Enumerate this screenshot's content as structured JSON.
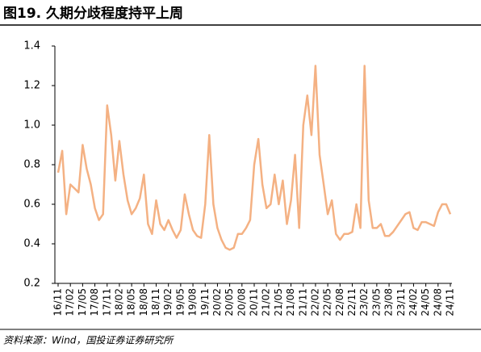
{
  "chart_data": {
    "type": "line",
    "title": "图19. 久期分歧程度持平上周",
    "source": "资料来源：Wind，国投证券证券研究所",
    "categories": [
      "16/11",
      null,
      null,
      "17/02",
      null,
      null,
      "17/05",
      null,
      null,
      "17/08",
      null,
      null,
      "17/11",
      null,
      null,
      "18/02",
      null,
      null,
      "18/05",
      null,
      null,
      "18/08",
      null,
      null,
      "18/11",
      null,
      null,
      "19/02",
      null,
      null,
      "19/05",
      null,
      null,
      "19/08",
      null,
      null,
      "19/11",
      null,
      null,
      "20/02",
      null,
      null,
      "20/05",
      null,
      null,
      "20/08",
      null,
      null,
      "20/11",
      null,
      null,
      "21/02",
      null,
      null,
      "21/05",
      null,
      null,
      "21/08",
      null,
      null,
      "21/11",
      null,
      null,
      "22/02",
      null,
      null,
      "22/05",
      null,
      null,
      "22/08",
      null,
      null,
      "22/11",
      null,
      null,
      "23/02",
      null,
      null,
      "23/05",
      null,
      null,
      "23/08",
      null,
      null,
      "23/11",
      null,
      null,
      "24/02",
      null,
      null,
      "24/05",
      null,
      null,
      "24/08",
      null,
      null,
      "24/11"
    ],
    "series": [
      {
        "name": "久期分歧程度",
        "color": "#f4b183",
        "values": [
          0.76,
          0.87,
          0.55,
          0.7,
          0.68,
          0.66,
          0.9,
          0.78,
          0.7,
          0.58,
          0.52,
          0.55,
          1.1,
          0.95,
          0.72,
          0.92,
          0.75,
          0.62,
          0.55,
          0.58,
          0.63,
          0.75,
          0.5,
          0.45,
          0.62,
          0.5,
          0.47,
          0.52,
          0.47,
          0.43,
          0.47,
          0.65,
          0.55,
          0.47,
          0.44,
          0.43,
          0.6,
          0.95,
          0.6,
          0.48,
          0.42,
          0.38,
          0.37,
          0.38,
          0.45,
          0.45,
          0.48,
          0.52,
          0.8,
          0.93,
          0.7,
          0.58,
          0.6,
          0.75,
          0.6,
          0.72,
          0.5,
          0.62,
          0.85,
          0.48,
          1.0,
          1.15,
          0.95,
          1.3,
          0.85,
          0.7,
          0.55,
          0.62,
          0.45,
          0.42,
          0.45,
          0.45,
          0.46,
          0.6,
          0.48,
          1.3,
          0.62,
          0.48,
          0.48,
          0.5,
          0.44,
          0.44,
          0.46,
          0.49,
          0.52,
          0.55,
          0.56,
          0.48,
          0.47,
          0.51,
          0.51,
          0.5,
          0.49,
          0.56,
          0.6,
          0.6,
          0.55
        ]
      }
    ],
    "ylim": [
      0.2,
      1.4
    ],
    "yticks": [
      {
        "value": 0.2,
        "label": "0.2"
      },
      {
        "value": 0.4,
        "label": "0.4"
      },
      {
        "value": 0.6,
        "label": "0.6"
      },
      {
        "value": 0.8,
        "label": "0.8"
      },
      {
        "value": 1.0,
        "label": "1.0"
      },
      {
        "value": 1.2,
        "label": "1.2"
      },
      {
        "value": 1.4,
        "label": "1.4"
      }
    ],
    "grid": false
  }
}
